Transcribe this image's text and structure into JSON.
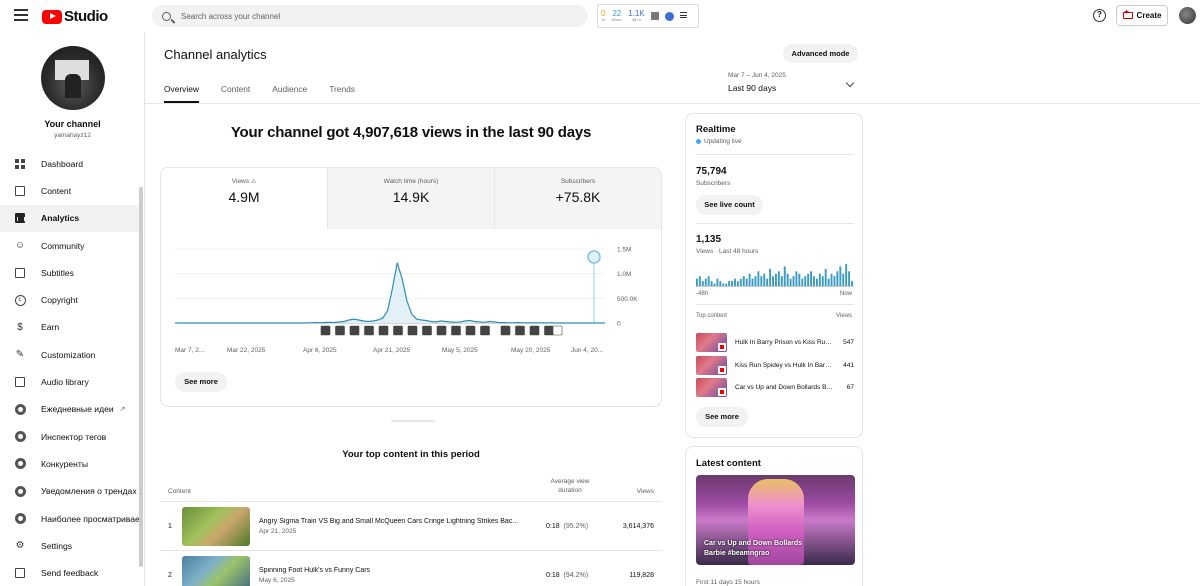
{
  "app": {
    "logo_text": "Studio",
    "search_placeholder": "Search across your channel",
    "create_label": "Create",
    "help_glyph": "?"
  },
  "extension": {
    "stats": [
      {
        "value": "0",
        "sub": "1h",
        "color": "#e6a800"
      },
      {
        "value": "22",
        "sub": "60sec",
        "color": "#3b9fd8"
      },
      {
        "value": "1.1K",
        "sub": "48 hr",
        "color": "#3b6fd4"
      }
    ]
  },
  "sidebar": {
    "channel_title": "Your channel",
    "channel_handle": "yamahayz12",
    "items": [
      {
        "label": "Dashboard",
        "icon": "dashboard-icon"
      },
      {
        "label": "Content",
        "icon": "content-icon"
      },
      {
        "label": "Analytics",
        "icon": "analytics-icon",
        "active": true
      },
      {
        "label": "Community",
        "icon": "community-icon"
      },
      {
        "label": "Subtitles",
        "icon": "subtitles-icon"
      },
      {
        "label": "Copyright",
        "icon": "copyright-icon"
      },
      {
        "label": "Earn",
        "icon": "earn-icon"
      },
      {
        "label": "Customization",
        "icon": "customization-icon"
      },
      {
        "label": "Audio library",
        "icon": "audio-library-icon"
      },
      {
        "label": "Ежедневные идеи",
        "icon": "extension-icon"
      },
      {
        "label": "Инспектор тегов",
        "icon": "extension-icon"
      },
      {
        "label": "Конкуренты",
        "icon": "extension-icon"
      },
      {
        "label": "Уведомления о трендах",
        "icon": "extension-icon"
      },
      {
        "label": "Наиболее просматриваемые",
        "icon": "extension-icon"
      },
      {
        "label": "Settings",
        "icon": "settings-icon"
      },
      {
        "label": "Send feedback",
        "icon": "feedback-icon"
      }
    ]
  },
  "main": {
    "title": "Channel analytics",
    "advanced_mode": "Advanced mode",
    "tabs": [
      {
        "label": "Overview",
        "active": true
      },
      {
        "label": "Content"
      },
      {
        "label": "Audience"
      },
      {
        "label": "Trends"
      }
    ],
    "date_range": {
      "dates": "Mar 7 – Jun 4, 2025",
      "label": "Last 90 days"
    },
    "headline": "Your channel got 4,907,618 views in the last 90 days",
    "metrics": [
      {
        "label": "Views",
        "value": "4.9M",
        "warning": true
      },
      {
        "label": "Watch time (hours)",
        "value": "14.9K"
      },
      {
        "label": "Subscribers",
        "value": "+75.8K"
      }
    ],
    "see_more": "See more",
    "top_content": {
      "title": "Your top content in this period",
      "headers": {
        "content": "Content",
        "avg_duration": "Average view duration",
        "views": "Views"
      },
      "rows": [
        {
          "num": "1",
          "title": "Angry Sigma Train VS Big and Small McQueen Cars Cringe Lightning Strikes Bac...",
          "date": "Apr 21, 2025",
          "duration": "0:18",
          "pct": "(95.2%)",
          "views": "3,614,376"
        },
        {
          "num": "2",
          "title": "Spinning Foot Hulk's vs Funny Cars",
          "date": "May 6, 2025",
          "duration": "0:18",
          "pct": "(94.2%)",
          "views": "119,828"
        }
      ]
    }
  },
  "chart_data": {
    "type": "line",
    "title": "",
    "xlabel": "",
    "ylabel": "",
    "ylim": [
      0,
      1500000
    ],
    "y_ticks": [
      "1.5M",
      "1.0M",
      "500.0K",
      "0"
    ],
    "y_tick_values": [
      1500000,
      1000000,
      500000,
      0
    ],
    "x_tick_labels": [
      "Mar 7, 2...",
      "Mar 22, 2025",
      "Apr 6, 2025",
      "Apr 21, 2025",
      "May 5, 2025",
      "May 20, 2025",
      "Jun 4, 20..."
    ],
    "grid": true,
    "series": [
      {
        "values": [
          0,
          0,
          0,
          0,
          0,
          0,
          0,
          0,
          0,
          0,
          0,
          0,
          0,
          0,
          0,
          0,
          0,
          0,
          0,
          0,
          0,
          0,
          0,
          0,
          0,
          0,
          0,
          0,
          5000,
          10000,
          5000,
          10000,
          15000,
          10000,
          20000,
          30000,
          60000,
          80000,
          60000,
          40000,
          30000,
          40000,
          60000,
          100000,
          250000,
          700000,
          1220000,
          900000,
          450000,
          180000,
          80000,
          60000,
          50000,
          30000,
          20000,
          40000,
          30000,
          20000,
          15000,
          20000,
          40000,
          50000,
          30000,
          20000,
          15000,
          30000,
          20000,
          10000,
          8000,
          6000,
          5000,
          10000,
          5000,
          3000,
          2000,
          3000,
          2000,
          2000,
          2000,
          1000,
          1000,
          1000,
          1000,
          1000,
          1000,
          1000,
          1000,
          1000,
          1000,
          1000
        ]
      }
    ],
    "upload_markers": 17
  },
  "realtime": {
    "title": "Realtime",
    "status": "Updating live",
    "subscribers": "75,794",
    "subscribers_label": "Subscribers",
    "live_count_btn": "See live count",
    "views": "1,135",
    "views_label": "Views · Last 48 hours",
    "axis_left": "-48h",
    "axis_right": "Now",
    "spark_values": [
      3,
      4,
      2,
      3,
      4,
      2,
      1,
      3,
      2,
      1,
      1,
      2,
      2,
      3,
      2,
      3,
      4,
      3,
      5,
      3,
      4,
      6,
      4,
      5,
      3,
      7,
      4,
      5,
      6,
      4,
      8,
      5,
      3,
      4,
      6,
      5,
      3,
      4,
      5,
      6,
      4,
      3,
      5,
      4,
      7,
      3,
      5,
      4,
      6,
      8,
      5,
      9,
      6,
      2
    ],
    "top_content_label": "Top content",
    "views_col_label": "Views",
    "items": [
      {
        "title": "Hulk In Barry Prison vs Kiss Run Spidey",
        "views": "547"
      },
      {
        "title": "Kiss Run Spidey vs Hulk In Barry Prison",
        "views": "441"
      },
      {
        "title": "Car vs Up and Down Bollards Barbie",
        "views": "67"
      }
    ],
    "see_more": "See more"
  },
  "latest": {
    "title": "Latest content",
    "caption": "Car vs Up and Down Bollards Barbie #beamngrao",
    "since": "First 11 days 15 hours"
  }
}
